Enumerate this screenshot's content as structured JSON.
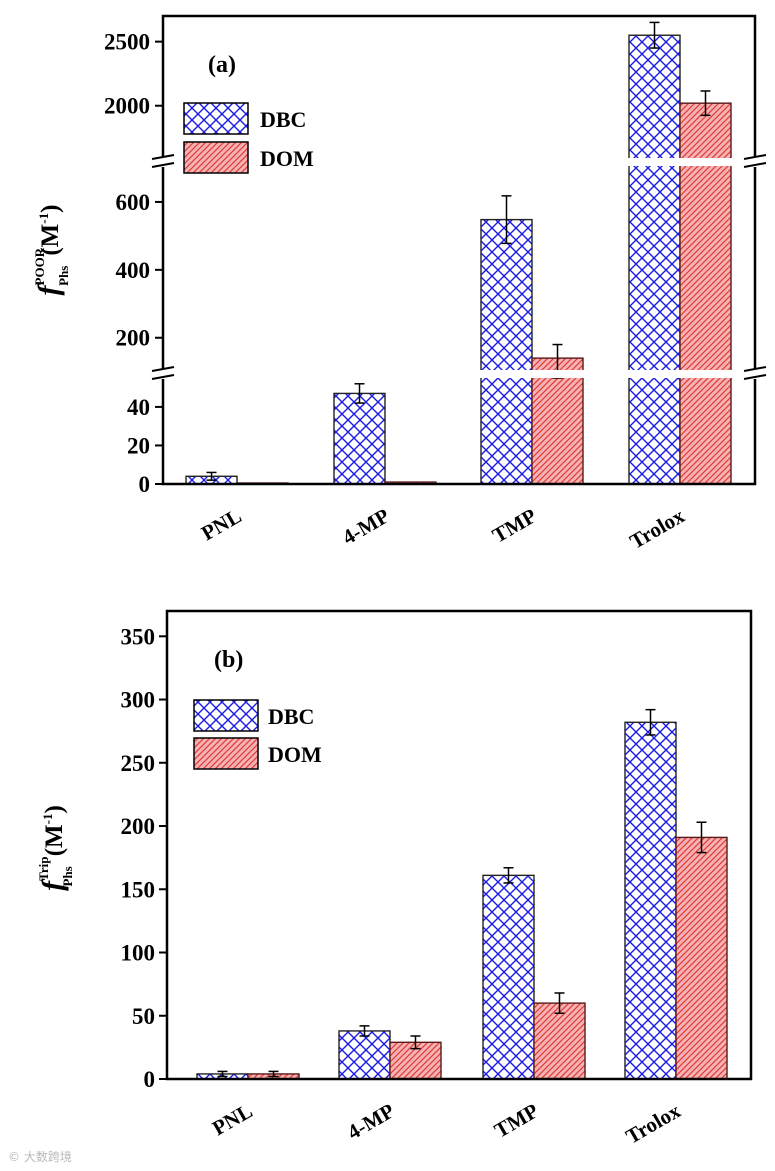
{
  "colors": {
    "dbc": "#1a1ae6",
    "dom": "#e03838",
    "dom_fill": "#f6b3b3",
    "axis": "#000000"
  },
  "chart_data": [
    {
      "type": "bar",
      "panel_label": "(a)",
      "y_label": {
        "symbol": "f",
        "superscript": "POOR",
        "subscript": "Phs",
        "unit": "(M",
        "unit_exp": "-1",
        "unit_close": ")"
      },
      "categories": [
        "PNL",
        "4-MP",
        "TMP",
        "Trolox"
      ],
      "series": [
        {
          "name": "DBC",
          "values": [
            4,
            47,
            548,
            2550
          ],
          "errors": [
            2,
            5,
            70,
            100
          ]
        },
        {
          "name": "DOM",
          "values": [
            0,
            1,
            140,
            2020
          ],
          "errors": [
            0,
            0,
            40,
            95
          ]
        }
      ],
      "broken_axis": [
        {
          "ylim": [
            0,
            55
          ],
          "ticks": [
            0,
            20,
            40
          ]
        },
        {
          "ylim": [
            105,
            700
          ],
          "ticks": [
            200,
            400,
            600
          ]
        },
        {
          "ylim": [
            1600,
            2700
          ],
          "ticks": [
            2000,
            2500
          ]
        }
      ],
      "legend": [
        "DBC",
        "DOM"
      ]
    },
    {
      "type": "bar",
      "panel_label": "(b)",
      "y_label": {
        "symbol": "f",
        "superscript": "Trip",
        "subscript": "Phs",
        "unit": "(M",
        "unit_exp": "-1",
        "unit_close": ")"
      },
      "categories": [
        "PNL",
        "4-MP",
        "TMP",
        "Trolox"
      ],
      "series": [
        {
          "name": "DBC",
          "values": [
            4,
            38,
            161,
            282
          ],
          "errors": [
            2,
            4,
            6,
            10
          ]
        },
        {
          "name": "DOM",
          "values": [
            4,
            29,
            60,
            191
          ],
          "errors": [
            2,
            5,
            8,
            12
          ]
        }
      ],
      "ylim": [
        0,
        370
      ],
      "ticks": [
        0,
        50,
        100,
        150,
        200,
        250,
        300,
        350
      ],
      "legend": [
        "DBC",
        "DOM"
      ]
    }
  ],
  "watermark": "© 大数跨境"
}
